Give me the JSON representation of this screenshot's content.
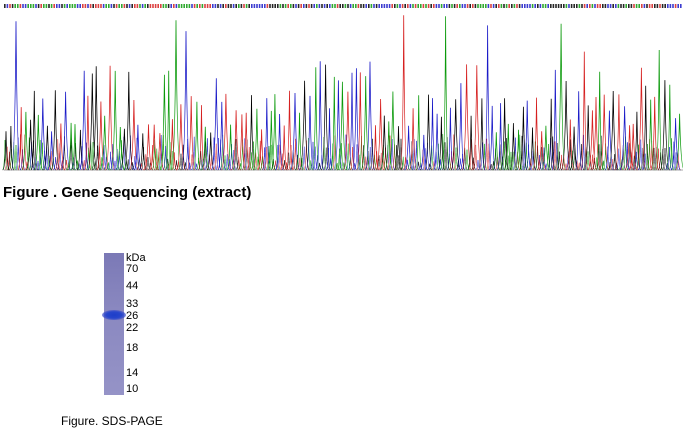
{
  "chart_data": {
    "type": "line",
    "title": "",
    "xlabel": "",
    "ylabel": "",
    "grid": false,
    "series": [
      {
        "color": "#000000"
      },
      {
        "color": "#d62020"
      },
      {
        "color": "#0b9a0b"
      },
      {
        "color": "#1a1ac8"
      }
    ]
  },
  "gene_figure": {
    "caption": "Figure . Gene Sequencing (extract)"
  },
  "sds_page": {
    "unit_label": "kDa",
    "markers": [
      "70",
      "44",
      "33",
      "26",
      "22",
      "18",
      "14",
      "10"
    ],
    "caption": "Figure. SDS-PAGE",
    "lane_color": "#8886c0",
    "band_color": "#2440c8"
  }
}
